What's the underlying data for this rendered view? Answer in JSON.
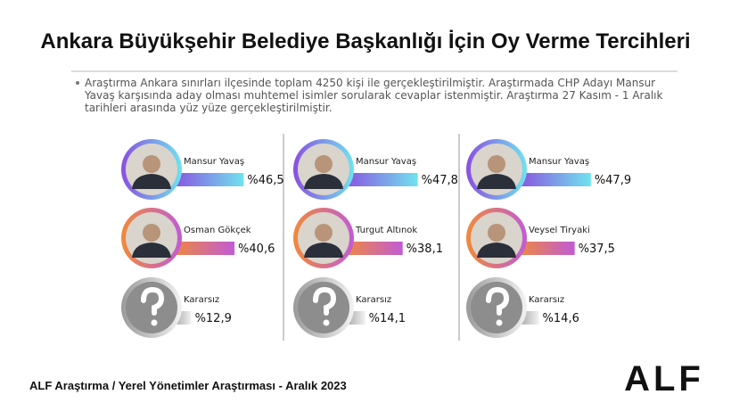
{
  "title": "Ankara Büyükşehir Belediye Başkanlığı İçin Oy Verme Tercihleri",
  "description": "Araştırma Ankara sınırları ilçesinde toplam 4250 kişi ile gerçekleştirilmiştir. Araştırmada CHP Adayı Mansur Yavaş karşısında aday olması muhtemel isimler sorularak cevaplar istenmiştir. Araştırma 27 Kasım - 1 Aralık tarihleri arasında yüz yüze gerçekleştirilmiştir.",
  "footer": "ALF Araştırma / Yerel Yönetimler Araştırması - Aralık 2023",
  "logo": "ALF",
  "chart_data": [
    {
      "type": "bar",
      "categories": [
        "Mansur Yavaş",
        "Osman Gökçek",
        "Kararsız"
      ],
      "values": [
        46.5,
        40.6,
        12.9
      ],
      "value_labels": [
        "%46,5",
        "%40,6",
        "%12,9"
      ],
      "colors": [
        [
          "#8a4fe0",
          "#6fe3ef"
        ],
        [
          "#f08a3a",
          "#c15bd6"
        ],
        [
          "#9a9a9a",
          "#f2f2f2"
        ]
      ]
    },
    {
      "type": "bar",
      "categories": [
        "Mansur Yavaş",
        "Turgut Altınok",
        "Kararsız"
      ],
      "values": [
        47.8,
        38.1,
        14.1
      ],
      "value_labels": [
        "%47,8",
        "%38,1",
        "%14,1"
      ],
      "colors": [
        [
          "#8a4fe0",
          "#6fe3ef"
        ],
        [
          "#f08a3a",
          "#c15bd6"
        ],
        [
          "#9a9a9a",
          "#f2f2f2"
        ]
      ]
    },
    {
      "type": "bar",
      "categories": [
        "Mansur Yavaş",
        "Veysel Tiryaki",
        "Kararsız"
      ],
      "values": [
        47.9,
        37.5,
        14.6
      ],
      "value_labels": [
        "%47,9",
        "%37,5",
        "%14,6"
      ],
      "colors": [
        [
          "#8a4fe0",
          "#6fe3ef"
        ],
        [
          "#f08a3a",
          "#c15bd6"
        ],
        [
          "#9a9a9a",
          "#f2f2f2"
        ]
      ]
    }
  ]
}
